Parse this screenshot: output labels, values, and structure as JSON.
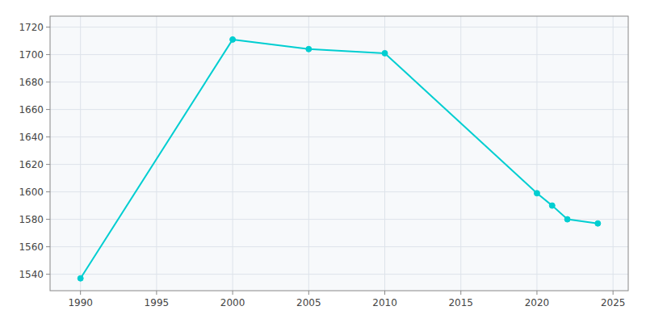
{
  "chart_data": {
    "type": "line",
    "x": [
      1990,
      2000,
      2005,
      2010,
      2020,
      2021,
      2022,
      2024
    ],
    "values": [
      1537,
      1711,
      1704,
      1701,
      1599,
      1590,
      1580,
      1577
    ],
    "color": "#00CED1",
    "marker": "circle",
    "xlim": [
      1988,
      2026
    ],
    "ylim": [
      1528,
      1728
    ],
    "xticks": [
      1990,
      1995,
      2000,
      2005,
      2010,
      2015,
      2020,
      2025
    ],
    "yticks": [
      1540,
      1560,
      1580,
      1600,
      1620,
      1640,
      1660,
      1680,
      1700,
      1720
    ],
    "grid": true
  }
}
